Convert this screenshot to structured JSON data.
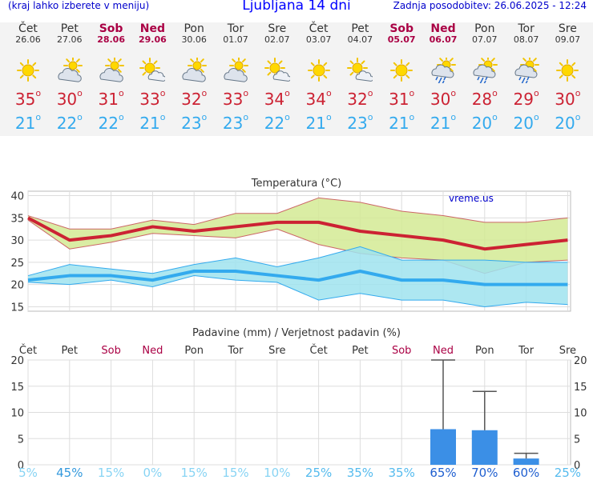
{
  "header": {
    "menu_hint": "(kraj lahko izberete v meniju)",
    "title": "Ljubljana 14 dni",
    "updated": "Zadnja posodobitev: 26.06.2025 - 12:24"
  },
  "days": [
    {
      "name": "Čet",
      "date": "26.06",
      "weekend": false,
      "icon": "sun-icon",
      "tmax": "35",
      "tmin": "21"
    },
    {
      "name": "Pet",
      "date": "27.06",
      "weekend": false,
      "icon": "sun-cloud-icon",
      "tmax": "30",
      "tmin": "22"
    },
    {
      "name": "Sob",
      "date": "28.06",
      "weekend": true,
      "icon": "sun-cloud-icon",
      "tmax": "31",
      "tmin": "22"
    },
    {
      "name": "Ned",
      "date": "29.06",
      "weekend": true,
      "icon": "sun-small-cloud-icon",
      "tmax": "33",
      "tmin": "21"
    },
    {
      "name": "Pon",
      "date": "30.06",
      "weekend": false,
      "icon": "sun-cloud-icon",
      "tmax": "32",
      "tmin": "23"
    },
    {
      "name": "Tor",
      "date": "01.07",
      "weekend": false,
      "icon": "sun-cloud-icon",
      "tmax": "33",
      "tmin": "23"
    },
    {
      "name": "Sre",
      "date": "02.07",
      "weekend": false,
      "icon": "sun-small-cloud-icon",
      "tmax": "34",
      "tmin": "22"
    },
    {
      "name": "Čet",
      "date": "03.07",
      "weekend": false,
      "icon": "sun-icon",
      "tmax": "34",
      "tmin": "21"
    },
    {
      "name": "Pet",
      "date": "04.07",
      "weekend": false,
      "icon": "sun-small-cloud-icon",
      "tmax": "32",
      "tmin": "23"
    },
    {
      "name": "Sob",
      "date": "05.07",
      "weekend": true,
      "icon": "sun-icon",
      "tmax": "31",
      "tmin": "21"
    },
    {
      "name": "Ned",
      "date": "06.07",
      "weekend": true,
      "icon": "sun-cloud-rain-icon",
      "tmax": "30",
      "tmin": "21"
    },
    {
      "name": "Pon",
      "date": "07.07",
      "weekend": false,
      "icon": "sun-cloud-rain-icon",
      "tmax": "28",
      "tmin": "20"
    },
    {
      "name": "Tor",
      "date": "08.07",
      "weekend": false,
      "icon": "sun-cloud-rain-icon",
      "tmax": "29",
      "tmin": "20"
    },
    {
      "name": "Sre",
      "date": "09.07",
      "weekend": false,
      "icon": "sun-icon",
      "tmax": "30",
      "tmin": "20"
    }
  ],
  "colors": {
    "tmax": "#cc2233",
    "tmin": "#33aaee",
    "weekend": "#aa0044",
    "max_band": "#d4ea94",
    "min_band": "#9fe3ef",
    "bar": "#3b8fe6"
  },
  "chart_data": [
    {
      "type": "line",
      "title": "Temperatura (°C)",
      "watermark": "vreme.us",
      "ylim": [
        14,
        41
      ],
      "yticks": [
        15,
        20,
        25,
        30,
        35,
        40
      ],
      "grid": true,
      "categories": [
        "26.06",
        "27.06",
        "28.06",
        "29.06",
        "30.06",
        "01.07",
        "02.07",
        "03.07",
        "04.07",
        "05.07",
        "06.07",
        "07.07",
        "08.07",
        "09.07"
      ],
      "series": [
        {
          "values": [
            35,
            30,
            31,
            33,
            32,
            33,
            34,
            34,
            32,
            31,
            30,
            28,
            29,
            30
          ],
          "band_high": [
            35.5,
            32.5,
            32.5,
            34.5,
            33.5,
            36,
            36,
            39.5,
            38.5,
            36.5,
            35.5,
            34,
            34,
            35
          ],
          "band_low": [
            34.5,
            28,
            29.5,
            31.5,
            31,
            30.5,
            32.5,
            29,
            27,
            26,
            25.5,
            22.5,
            25,
            25.5
          ]
        },
        {
          "values": [
            21,
            22,
            22,
            21,
            23,
            23,
            22,
            21,
            23,
            21,
            21,
            20,
            20,
            20
          ],
          "band_high": [
            22,
            24.5,
            23.5,
            22.5,
            24.5,
            26,
            24,
            26,
            28.5,
            25.5,
            25.5,
            25.5,
            25,
            25
          ],
          "band_low": [
            20.5,
            20,
            21,
            19.5,
            22,
            21,
            20.5,
            16.5,
            18,
            16.5,
            16.5,
            15,
            16,
            15.5
          ]
        }
      ]
    },
    {
      "type": "bar",
      "title": "Padavine (mm) / Verjetnost padavin (%)",
      "categories": [
        "Čet",
        "Pet",
        "Sob",
        "Ned",
        "Pon",
        "Tor",
        "Sre",
        "Čet",
        "Pet",
        "Sob",
        "Ned",
        "Pon",
        "Tor",
        "Sre"
      ],
      "weekend": [
        false,
        false,
        true,
        true,
        false,
        false,
        false,
        false,
        false,
        true,
        true,
        false,
        false,
        false
      ],
      "ylim": [
        0,
        20
      ],
      "yticks": [
        0,
        5,
        10,
        15,
        20
      ],
      "values": [
        0,
        0,
        0,
        0,
        0,
        0,
        0,
        0,
        0,
        0,
        6.8,
        6.6,
        1.2,
        0
      ],
      "error_high": [
        0,
        0,
        0,
        0,
        0,
        0,
        0,
        0,
        0,
        0,
        20,
        14,
        2.2,
        0
      ],
      "probability": [
        "5%",
        "45%",
        "15%",
        "0%",
        "15%",
        "15%",
        "10%",
        "25%",
        "35%",
        "35%",
        "65%",
        "70%",
        "60%",
        "25%"
      ]
    }
  ]
}
